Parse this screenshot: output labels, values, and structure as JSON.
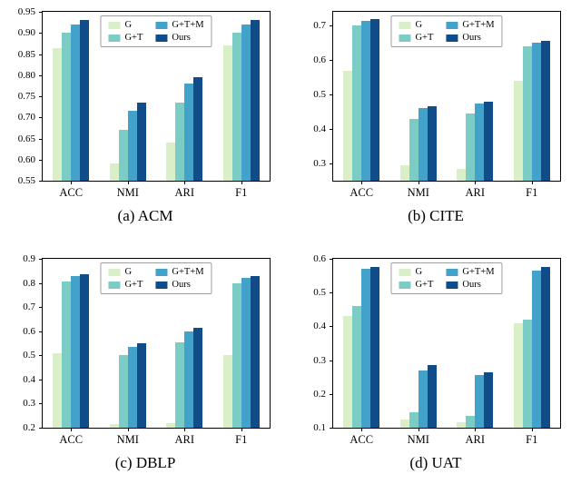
{
  "figure": {
    "background": "#ffffff"
  },
  "legend": {
    "labels": [
      "G",
      "G+T",
      "G+T+M",
      "Ours"
    ],
    "position": "upper center",
    "columns": 2
  },
  "colors": {
    "series": [
      "#d8efc8",
      "#7bccc4",
      "#43a2ca",
      "#104c87"
    ],
    "axis": "#000000",
    "legend_border": "#a0a0a0"
  },
  "chart_data": [
    {
      "type": "bar",
      "caption": "(a) ACM",
      "categories": [
        "ACC",
        "NMI",
        "ARI",
        "F1"
      ],
      "series": [
        {
          "name": "G",
          "values": [
            0.865,
            0.59,
            0.64,
            0.87
          ]
        },
        {
          "name": "G+T",
          "values": [
            0.9,
            0.67,
            0.735,
            0.9
          ]
        },
        {
          "name": "G+T+M",
          "values": [
            0.92,
            0.715,
            0.78,
            0.92
          ]
        },
        {
          "name": "Ours",
          "values": [
            0.93,
            0.735,
            0.795,
            0.93
          ]
        }
      ],
      "ylim": [
        0.55,
        0.95
      ],
      "yticks": [
        0.55,
        0.6,
        0.65,
        0.7,
        0.75,
        0.8,
        0.85,
        0.9,
        0.95
      ],
      "ytick_labels": [
        "0.55",
        "0.60",
        "0.65",
        "0.70",
        "0.75",
        "0.80",
        "0.85",
        "0.90",
        "0.95"
      ],
      "grid": false,
      "legend_position": "upper center"
    },
    {
      "type": "bar",
      "caption": "(b) CITE",
      "categories": [
        "ACC",
        "NMI",
        "ARI",
        "F1"
      ],
      "series": [
        {
          "name": "G",
          "values": [
            0.57,
            0.295,
            0.285,
            0.54
          ]
        },
        {
          "name": "G+T",
          "values": [
            0.7,
            0.43,
            0.445,
            0.64
          ]
        },
        {
          "name": "G+T+M",
          "values": [
            0.715,
            0.46,
            0.475,
            0.65
          ]
        },
        {
          "name": "Ours",
          "values": [
            0.72,
            0.465,
            0.48,
            0.655
          ]
        }
      ],
      "ylim": [
        0.25,
        0.74
      ],
      "yticks": [
        0.3,
        0.4,
        0.5,
        0.6,
        0.7
      ],
      "ytick_labels": [
        "0.3",
        "0.4",
        "0.5",
        "0.6",
        "0.7"
      ],
      "grid": false,
      "legend_position": "upper center"
    },
    {
      "type": "bar",
      "caption": "(c) DBLP",
      "categories": [
        "ACC",
        "NMI",
        "ARI",
        "F1"
      ],
      "series": [
        {
          "name": "G",
          "values": [
            0.51,
            0.215,
            0.22,
            0.5
          ]
        },
        {
          "name": "G+T",
          "values": [
            0.805,
            0.5,
            0.555,
            0.8
          ]
        },
        {
          "name": "G+T+M",
          "values": [
            0.83,
            0.535,
            0.6,
            0.82
          ]
        },
        {
          "name": "Ours",
          "values": [
            0.835,
            0.55,
            0.615,
            0.83
          ]
        }
      ],
      "ylim": [
        0.2,
        0.9
      ],
      "yticks": [
        0.2,
        0.3,
        0.4,
        0.5,
        0.6,
        0.7,
        0.8,
        0.9
      ],
      "ytick_labels": [
        "0.2",
        "0.3",
        "0.4",
        "0.5",
        "0.6",
        "0.7",
        "0.8",
        "0.9"
      ],
      "grid": false,
      "legend_position": "upper center"
    },
    {
      "type": "bar",
      "caption": "(d) UAT",
      "categories": [
        "ACC",
        "NMI",
        "ARI",
        "F1"
      ],
      "series": [
        {
          "name": "G",
          "values": [
            0.43,
            0.125,
            0.115,
            0.41
          ]
        },
        {
          "name": "G+T",
          "values": [
            0.46,
            0.145,
            0.135,
            0.42
          ]
        },
        {
          "name": "G+T+M",
          "values": [
            0.57,
            0.27,
            0.255,
            0.565
          ]
        },
        {
          "name": "Ours",
          "values": [
            0.575,
            0.285,
            0.265,
            0.575
          ]
        }
      ],
      "ylim": [
        0.1,
        0.6
      ],
      "yticks": [
        0.1,
        0.2,
        0.3,
        0.4,
        0.5,
        0.6
      ],
      "ytick_labels": [
        "0.1",
        "0.2",
        "0.3",
        "0.4",
        "0.5",
        "0.6"
      ],
      "grid": false,
      "legend_position": "upper center"
    }
  ]
}
